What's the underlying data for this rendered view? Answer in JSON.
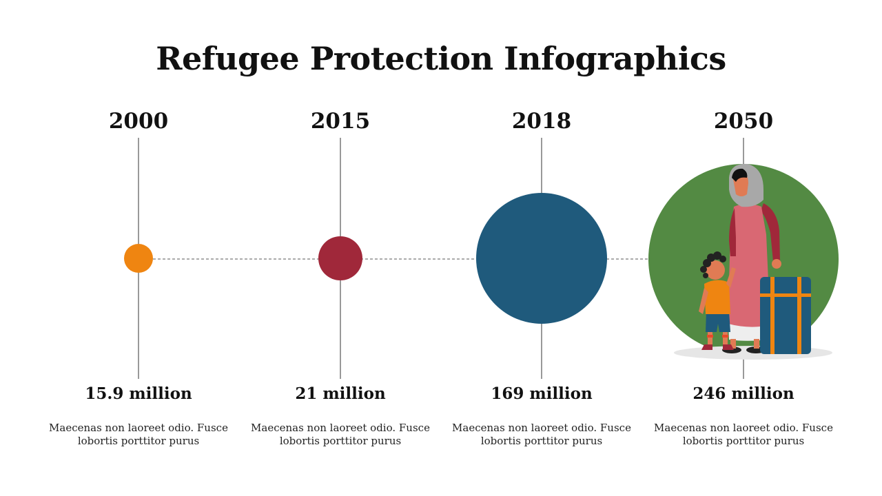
{
  "title": "Refugee Protection Infographics",
  "colors": {
    "orange": "#ef8511",
    "red": "#a0283a",
    "blue": "#1f5a7c",
    "green": "#538a43"
  },
  "milestones": [
    {
      "year": "2000",
      "value": "15.9 million",
      "description": "Maecenas non laoreet odio. Fusce lobortis porttitor purus"
    },
    {
      "year": "2015",
      "value": "21 million",
      "description": "Maecenas non laoreet odio. Fusce lobortis porttitor purus"
    },
    {
      "year": "2018",
      "value": "169 million",
      "description": "Maecenas non laoreet odio. Fusce lobortis porttitor purus"
    },
    {
      "year": "2050",
      "value": "246 million",
      "description": "Maecenas non laoreet odio. Fusce lobortis porttitor purus"
    }
  ],
  "illustration": "refugee-mother-child-suitcase"
}
